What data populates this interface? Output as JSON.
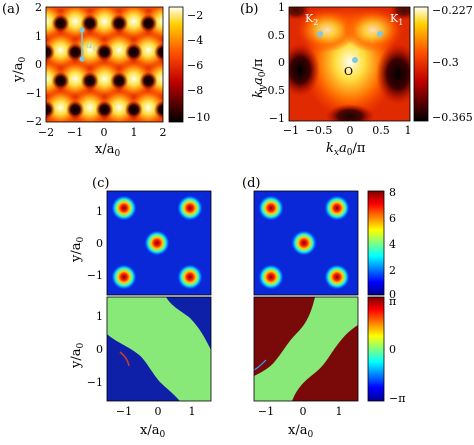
{
  "panels": {
    "a": {
      "label": "(a)",
      "ylabel": "y/a",
      "ylabel_sub": "0",
      "xlabel": "x/a",
      "xlabel_sub": "0",
      "xticks": [
        "−2",
        "−1",
        "0",
        "1",
        "2"
      ],
      "yticks": [
        "2",
        "1",
        "0",
        "−1",
        "−2"
      ],
      "colorbar_ticks": [
        "−2",
        "−4",
        "−6",
        "−8",
        "−10"
      ],
      "annotation": "a",
      "annotation_sub": "0"
    },
    "b": {
      "label": "(b)",
      "ylabel": "k",
      "ylabel_y": "y",
      "ylabel_rest": "a",
      "ylabel_sub": "0",
      "ylabel_tail": "/π",
      "xlabel": "k",
      "xlabel_x": "x",
      "xlabel_rest": "a",
      "xlabel_sub": "0",
      "xlabel_tail": "/π",
      "xticks": [
        "−1",
        "−0.5",
        "0",
        "0.5",
        "1"
      ],
      "yticks": [
        "1",
        "0.5",
        "0",
        "−0.5",
        "−1"
      ],
      "colorbar_ticks": [
        "−0.227",
        "−0.3",
        "−0.365"
      ],
      "points": [
        {
          "name": "K",
          "sub": "2"
        },
        {
          "name": "K",
          "sub": "1"
        },
        {
          "name": "O",
          "sub": ""
        }
      ]
    },
    "c": {
      "label": "(c)",
      "ylabel": "y/a",
      "ylabel_sub": "0",
      "xlabel": "x/a",
      "xlabel_sub": "0",
      "xticks": [
        "−1",
        "0",
        "1"
      ],
      "yticks": [
        "1",
        "0",
        "−1"
      ]
    },
    "d": {
      "label": "(d)",
      "xlabel": "x/a",
      "xlabel_sub": "0",
      "xticks": [
        "−1",
        "0",
        "1"
      ],
      "yticks": [
        "1",
        "0",
        "−1"
      ]
    },
    "density_colorbar_ticks": [
      "8",
      "6",
      "4",
      "2",
      "0"
    ],
    "phase_colorbar_ticks": [
      "π",
      "0",
      "−π"
    ]
  }
}
